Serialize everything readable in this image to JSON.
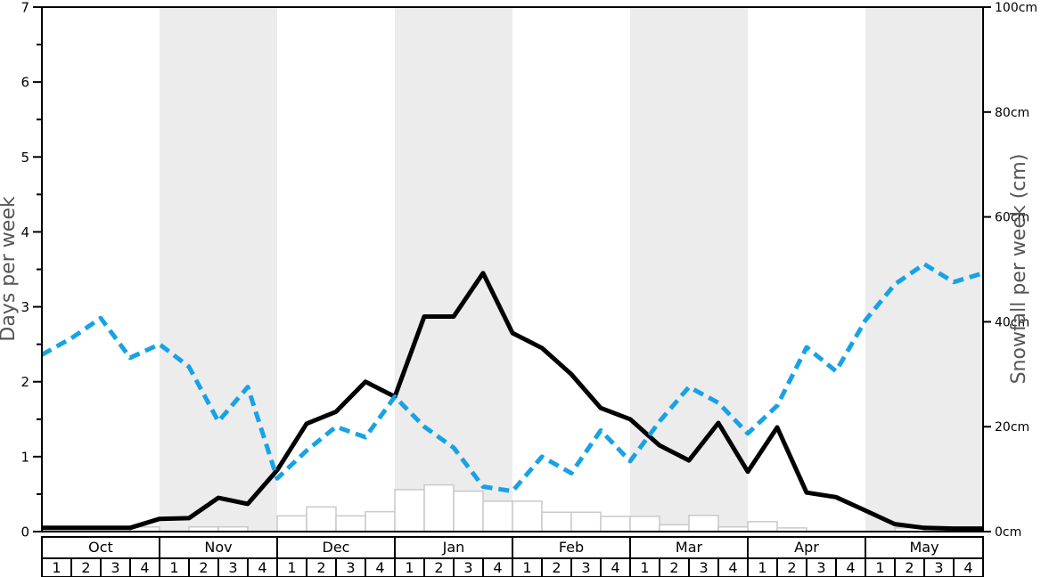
{
  "axes": {
    "left_label": "Days per week",
    "right_label": "Snowfall per week (cm)",
    "left_tick_labels": [
      "0",
      "1",
      "2",
      "3",
      "4",
      "5",
      "6",
      "7"
    ],
    "left_tick_values": [
      0,
      1,
      2,
      3,
      4,
      5,
      6,
      7
    ],
    "right_tick_labels": [
      "0cm",
      "20cm",
      "40cm",
      "60cm",
      "80cm",
      "100cm"
    ],
    "right_tick_values": [
      0,
      20,
      40,
      60,
      80,
      100
    ]
  },
  "colors": {
    "black_line": "#000000",
    "blue_line": "#17a2e6",
    "bar_fill": "#ffffff",
    "bar_stroke": "#c9c9c9",
    "band_fill": "#ececec",
    "axis_title": "#555555",
    "tick_label": "#000000",
    "spine": "#000000"
  },
  "months": [
    {
      "label": "Oct",
      "weeks": [
        "1",
        "2",
        "3",
        "4"
      ]
    },
    {
      "label": "Nov",
      "weeks": [
        "1",
        "2",
        "3",
        "4"
      ]
    },
    {
      "label": "Dec",
      "weeks": [
        "1",
        "2",
        "3",
        "4"
      ]
    },
    {
      "label": "Jan",
      "weeks": [
        "1",
        "2",
        "3",
        "4"
      ]
    },
    {
      "label": "Feb",
      "weeks": [
        "1",
        "2",
        "3",
        "4"
      ]
    },
    {
      "label": "Mar",
      "weeks": [
        "1",
        "2",
        "3",
        "4"
      ]
    },
    {
      "label": "Apr",
      "weeks": [
        "1",
        "2",
        "3",
        "4"
      ]
    },
    {
      "label": "May",
      "weeks": [
        "1",
        "2",
        "3",
        "4"
      ]
    }
  ],
  "chart_data": {
    "type": "line+bar",
    "months": [
      "Oct",
      "Nov",
      "Dec",
      "Jan",
      "Feb",
      "Mar",
      "Apr",
      "May"
    ],
    "weeks_per_month": 4,
    "shaded_months": [
      "Nov",
      "Jan",
      "Mar",
      "May"
    ],
    "x_note": "line vertices at 33 week boundaries (Oct wk1 start through May wk4 end); bars span each of the 32 weeks",
    "left_axis": {
      "label": "Days per week",
      "min": 0,
      "max": 7,
      "minor_tick_step": 0.5
    },
    "right_axis": {
      "label": "Snowfall per week (cm)",
      "min": 0,
      "max": 100
    },
    "grid": false,
    "legend": "none",
    "series": [
      {
        "name": "days-per-week-solid",
        "type": "line",
        "axis": "left",
        "style": "solid",
        "color": "#000000",
        "values": [
          0.05,
          0.05,
          0.05,
          0.05,
          0.17,
          0.18,
          0.45,
          0.37,
          0.82,
          1.44,
          1.6,
          2.0,
          1.8,
          2.87,
          2.87,
          3.45,
          2.65,
          2.45,
          2.1,
          1.65,
          1.5,
          1.15,
          0.95,
          1.45,
          0.8,
          1.39,
          0.52,
          0.46,
          0.28,
          0.1,
          0.05,
          0.04,
          0.04
        ]
      },
      {
        "name": "days-per-week-dashed",
        "type": "line",
        "axis": "left",
        "style": "dashed",
        "color": "#17a2e6",
        "values": [
          2.36,
          2.58,
          2.85,
          2.32,
          2.5,
          2.2,
          1.47,
          1.93,
          0.71,
          1.08,
          1.4,
          1.26,
          1.8,
          1.4,
          1.12,
          0.6,
          0.54,
          1.0,
          0.78,
          1.35,
          0.94,
          1.47,
          1.93,
          1.72,
          1.31,
          1.68,
          2.46,
          2.14,
          2.82,
          3.3,
          3.57,
          3.33,
          3.45
        ]
      },
      {
        "name": "snowfall-bars",
        "type": "bar",
        "axis": "right",
        "color_fill": "#ffffff",
        "color_stroke": "#c9c9c9",
        "values": [
          0,
          0,
          0,
          0.9,
          0,
          0.9,
          0.9,
          0,
          3.0,
          4.7,
          3.0,
          3.8,
          8.0,
          8.9,
          7.7,
          5.8,
          5.8,
          3.7,
          3.7,
          2.9,
          2.9,
          1.3,
          3.1,
          0.9,
          1.9,
          0.7,
          0,
          0,
          0,
          0.7,
          0,
          0
        ]
      }
    ]
  }
}
